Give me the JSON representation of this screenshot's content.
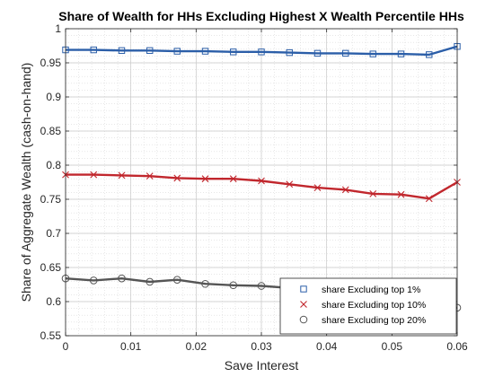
{
  "chart_data": {
    "type": "line",
    "title": "Share of Wealth for HHs Excluding Highest X Wealth Percentile HHs",
    "xlabel": "Save Interest",
    "ylabel": "Share of Aggregate Wealth (cash-on-hand)",
    "xlim": [
      0,
      0.06
    ],
    "ylim": [
      0.55,
      1.0
    ],
    "x_ticks": [
      "0",
      "0.01",
      "0.02",
      "0.03",
      "0.04",
      "0.05",
      "0.06"
    ],
    "y_ticks": [
      "0.55",
      "0.6",
      "0.65",
      "0.7",
      "0.75",
      "0.8",
      "0.85",
      "0.9",
      "0.95",
      "1"
    ],
    "grid": true,
    "minor_grid": true,
    "legend_position": "bottom-right",
    "x": [
      0,
      0.0043,
      0.0086,
      0.0129,
      0.0171,
      0.0214,
      0.0257,
      0.03,
      0.0343,
      0.0386,
      0.0429,
      0.0471,
      0.0514,
      0.0557,
      0.06
    ],
    "series": [
      {
        "name": "share Excluding top 1%",
        "color": "#2b5ea8",
        "marker": "square",
        "values": [
          0.969,
          0.969,
          0.968,
          0.968,
          0.967,
          0.967,
          0.966,
          0.966,
          0.965,
          0.964,
          0.964,
          0.963,
          0.963,
          0.962,
          0.974
        ]
      },
      {
        "name": "share Excluding top 10%",
        "color": "#c1272d",
        "marker": "x",
        "values": [
          0.786,
          0.786,
          0.785,
          0.784,
          0.781,
          0.78,
          0.78,
          0.777,
          0.772,
          0.767,
          0.764,
          0.758,
          0.757,
          0.751,
          0.775
        ]
      },
      {
        "name": "share Excluding top 20%",
        "color": "#555555",
        "marker": "circle",
        "values": [
          0.634,
          0.631,
          0.634,
          0.629,
          0.632,
          0.626,
          0.624,
          0.623,
          0.62,
          0.613,
          0.609,
          0.603,
          0.598,
          0.586,
          0.591
        ]
      }
    ]
  }
}
